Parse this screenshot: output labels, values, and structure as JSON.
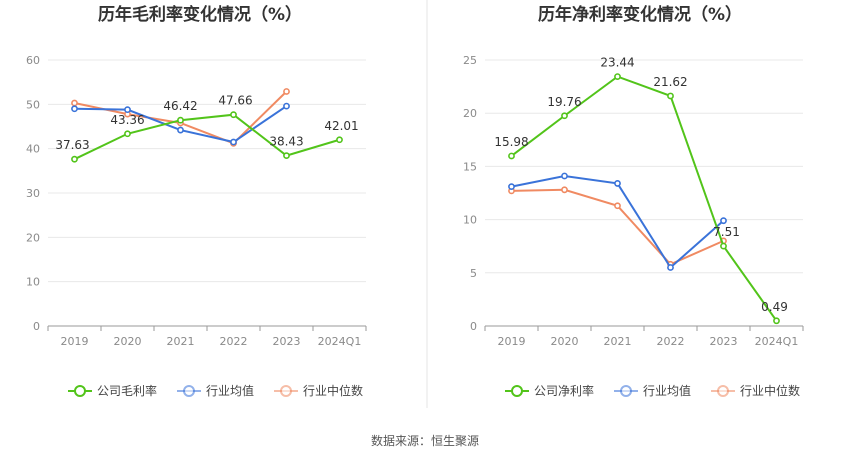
{
  "source": "数据来源：恒生聚源",
  "chart_data": [
    {
      "type": "line",
      "title": "历年毛利率变化情况（%）",
      "categories": [
        "2019",
        "2020",
        "2021",
        "2022",
        "2023",
        "2024Q1"
      ],
      "ylim": [
        0,
        60
      ],
      "yticks": [
        0,
        10,
        20,
        30,
        40,
        50,
        60
      ],
      "grid": true,
      "legend_position": "bottom",
      "series": [
        {
          "name": "公司毛利率",
          "color": "#52c41a",
          "values": [
            37.63,
            43.36,
            46.42,
            47.66,
            38.43,
            42.01
          ],
          "labels": [
            "37.63",
            "43.36",
            "46.42",
            "47.66",
            "38.43",
            "42.01"
          ]
        },
        {
          "name": "行业均值",
          "color": "#3a73d9",
          "values": [
            49.0,
            48.8,
            44.2,
            41.5,
            49.6,
            null
          ]
        },
        {
          "name": "行业中位数",
          "color": "#f08a62",
          "values": [
            50.3,
            47.8,
            45.8,
            41.2,
            52.9,
            null
          ]
        }
      ]
    },
    {
      "type": "line",
      "title": "历年净利率变化情况（%）",
      "categories": [
        "2019",
        "2020",
        "2021",
        "2022",
        "2023",
        "2024Q1"
      ],
      "ylim": [
        0,
        25
      ],
      "yticks": [
        0,
        5,
        10,
        15,
        20,
        25
      ],
      "grid": true,
      "legend_position": "bottom",
      "series": [
        {
          "name": "公司净利率",
          "color": "#52c41a",
          "values": [
            15.98,
            19.76,
            23.44,
            21.62,
            7.51,
            0.49
          ],
          "labels": [
            "15.98",
            "19.76",
            "23.44",
            "21.62",
            "7.51",
            "0.49"
          ]
        },
        {
          "name": "行业均值",
          "color": "#3a73d9",
          "values": [
            13.1,
            14.1,
            13.4,
            5.5,
            9.9,
            null
          ]
        },
        {
          "name": "行业中位数",
          "color": "#f08a62",
          "values": [
            12.7,
            12.8,
            11.3,
            5.8,
            8.0,
            null
          ]
        }
      ]
    }
  ]
}
